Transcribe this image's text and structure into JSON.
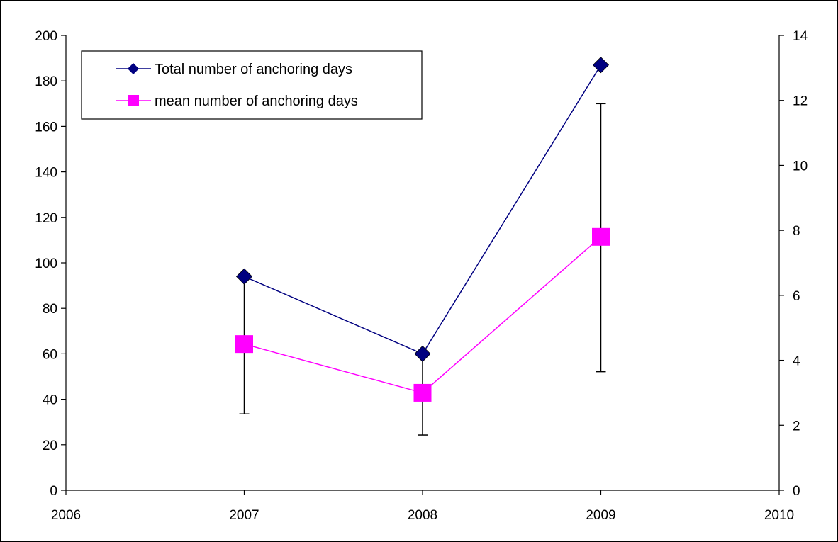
{
  "chart_data": {
    "type": "line",
    "x": [
      2007,
      2008,
      2009
    ],
    "xlim": [
      2006,
      2010
    ],
    "x_ticks": [
      2006,
      2007,
      2008,
      2009,
      2010
    ],
    "y_left_lim": [
      0,
      200
    ],
    "y_left_ticks": [
      0,
      20,
      40,
      60,
      80,
      100,
      120,
      140,
      160,
      180,
      200
    ],
    "y_right_lim": [
      0,
      14
    ],
    "y_right_ticks": [
      0,
      2,
      4,
      6,
      8,
      10,
      12,
      14
    ],
    "grid": false,
    "legend_position": "top-left",
    "series": [
      {
        "name": "Total number of anchoring days",
        "axis": "left",
        "values": [
          94,
          60,
          187
        ],
        "color": "#000080",
        "marker": "diamond"
      },
      {
        "name": "mean number of anchoring days",
        "axis": "right",
        "values": [
          4.5,
          3.0,
          7.8
        ],
        "error_low": [
          2.35,
          1.7,
          3.65
        ],
        "error_high": [
          6.6,
          4.15,
          11.9
        ],
        "color": "#FF00FF",
        "marker": "square"
      }
    ]
  }
}
